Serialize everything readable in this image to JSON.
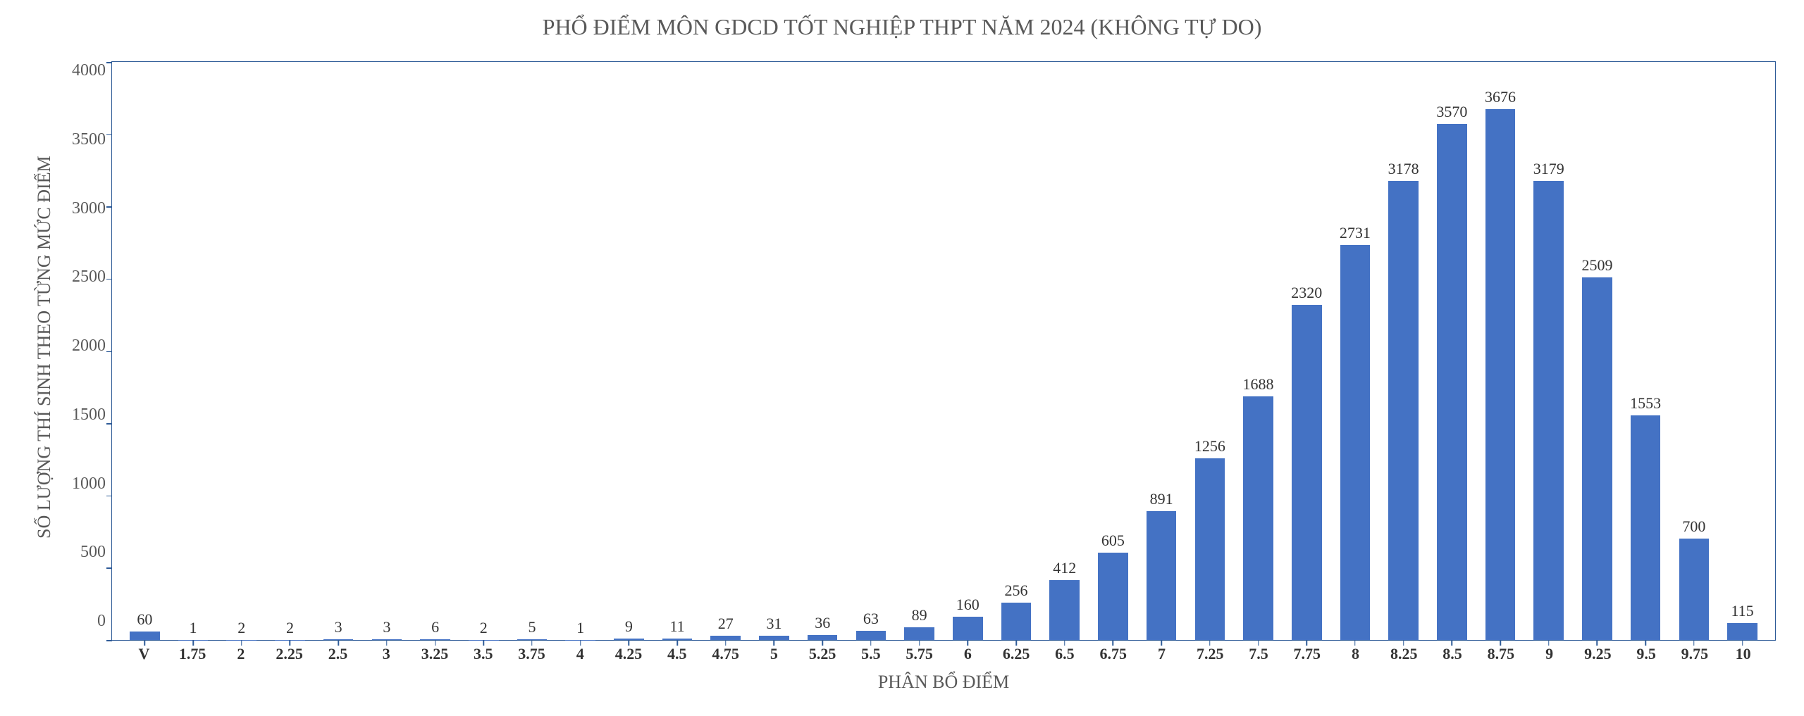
{
  "chart": {
    "type": "bar",
    "title": "PHỔ ĐIỂM MÔN GDCD TỐT NGHIỆP THPT NĂM 2024 (KHÔNG TỰ DO)",
    "x_axis_label": "PHÂN BỔ ĐIỂM",
    "y_axis_label": "SỐ LƯỢNG THÍ SINH THEO TỪNG MỨC ĐIỂM",
    "ylim": [
      0,
      4000
    ],
    "y_ticks": [
      4000,
      3500,
      3000,
      2500,
      2000,
      1500,
      1000,
      500,
      0
    ],
    "categories": [
      "V",
      "1.75",
      "2",
      "2.25",
      "2.5",
      "3",
      "3.25",
      "3.5",
      "3.75",
      "4",
      "4.25",
      "4.5",
      "4.75",
      "5",
      "5.25",
      "5.5",
      "5.75",
      "6",
      "6.25",
      "6.5",
      "6.75",
      "7",
      "7.25",
      "7.5",
      "7.75",
      "8",
      "8.25",
      "8.5",
      "8.75",
      "9",
      "9.25",
      "9.5",
      "9.75",
      "10"
    ],
    "values": [
      60,
      1,
      2,
      2,
      3,
      3,
      6,
      2,
      5,
      1,
      9,
      11,
      27,
      31,
      36,
      63,
      89,
      160,
      256,
      412,
      605,
      891,
      1256,
      1688,
      2320,
      2731,
      3178,
      3570,
      3676,
      3179,
      2509,
      1553,
      700,
      115
    ],
    "bar_color": "#4472c4",
    "border_color": "#2e5b97",
    "background_color": "#ffffff",
    "title_color": "#595959",
    "axis_label_color": "#595959",
    "tick_label_color": "#333333",
    "title_fontsize": 32,
    "axis_label_fontsize": 26,
    "tick_fontsize": 24,
    "value_label_fontsize": 22,
    "bar_width_ratio": 0.62,
    "font_family": "Times New Roman"
  }
}
